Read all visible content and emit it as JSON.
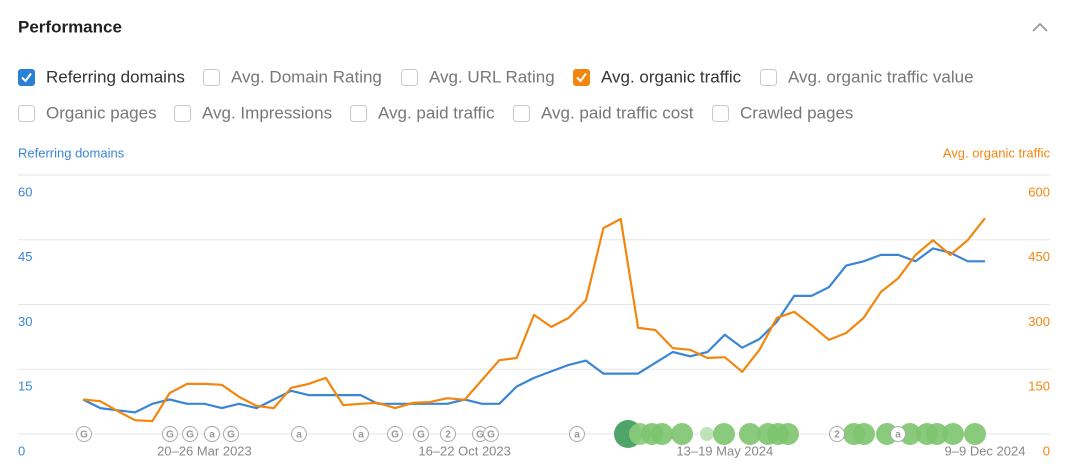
{
  "header": {
    "title": "Performance"
  },
  "options": [
    {
      "label": "Referring domains",
      "checked": true,
      "color": "#2b7fd6"
    },
    {
      "label": "Avg. Domain Rating",
      "checked": false
    },
    {
      "label": "Avg. URL Rating",
      "checked": false
    },
    {
      "label": "Avg. organic traffic",
      "checked": true,
      "color": "#f2870f"
    },
    {
      "label": "Avg. organic traffic value",
      "checked": false
    },
    {
      "label": "Organic pages",
      "checked": false
    },
    {
      "label": "Avg. Impressions",
      "checked": false
    },
    {
      "label": "Avg. paid traffic",
      "checked": false
    },
    {
      "label": "Avg. paid traffic cost",
      "checked": false
    },
    {
      "label": "Crawled pages",
      "checked": false
    }
  ],
  "event_markers": [
    "G",
    "G",
    "G",
    "a",
    "G",
    "a",
    "a",
    "G",
    "G",
    "2",
    "G",
    "G",
    "a",
    "2",
    "a"
  ],
  "chart_data": {
    "type": "line",
    "ylabel": "Referring domains",
    "y2label": "Avg. organic traffic",
    "categories": [
      null,
      null,
      null,
      null,
      null,
      null,
      null,
      "20–26 Mar 2023",
      null,
      null,
      null,
      null,
      null,
      null,
      null,
      null,
      null,
      null,
      null,
      null,
      null,
      null,
      "16–22 Oct 2023",
      null,
      null,
      null,
      null,
      null,
      null,
      null,
      null,
      null,
      null,
      null,
      null,
      null,
      null,
      "13–19 May 2024",
      null,
      null,
      null,
      null,
      null,
      null,
      null,
      null,
      null,
      null,
      null,
      null,
      null,
      null,
      "9–9 Dec 2024"
    ],
    "series": [
      {
        "name": "Referring domains",
        "color": "#3a86d4",
        "values": [
          8,
          6,
          5.5,
          5,
          7,
          8,
          7,
          7,
          6,
          7,
          6,
          8,
          10,
          9,
          9,
          9,
          9,
          7,
          7,
          7,
          7,
          7,
          8,
          7,
          7,
          11,
          13,
          14.5,
          16,
          17,
          14,
          14,
          14,
          16.5,
          19,
          18,
          19,
          23,
          20,
          22,
          26,
          32,
          32,
          34,
          39,
          40,
          41.5,
          41.5,
          40,
          43,
          42,
          40,
          40
        ]
      },
      {
        "name": "Avg. organic traffic",
        "color": "#f2870f",
        "axis": "y2",
        "values": [
          80,
          76,
          53,
          32,
          30,
          95,
          116,
          116,
          114,
          86,
          65,
          60,
          107,
          116,
          130,
          67,
          70,
          72,
          60,
          72,
          74,
          83,
          79,
          125,
          171,
          176,
          276,
          248,
          269,
          310,
          477,
          498,
          246,
          241,
          199,
          195,
          176,
          178,
          144,
          195,
          269,
          283,
          252,
          218,
          234,
          269,
          329,
          361,
          415,
          449,
          415,
          449,
          500
        ]
      }
    ],
    "ylim": [
      0,
      60
    ],
    "yticks": [
      0,
      15,
      30,
      45,
      60
    ],
    "y2lim": [
      0,
      600
    ],
    "y2ticks": [
      0,
      150,
      300,
      450,
      600
    ],
    "grid": true
  }
}
